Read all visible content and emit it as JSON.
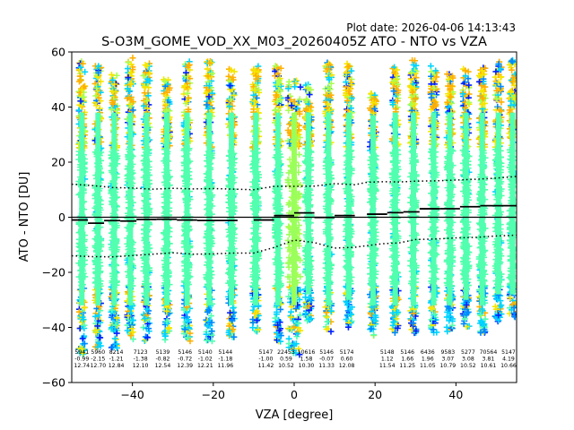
{
  "chart_data": {
    "type": "scatter",
    "plot_date_label": "Plot date: 2026-04-06 14:13:43",
    "title": "S-O3M_GOME_VOD_XX_M03_20260405Z ATO - NTO vs VZA",
    "xlabel": "VZA [degree]",
    "ylabel": "ATO - NTO [DU]",
    "xlim": [
      -55,
      55
    ],
    "ylim": [
      -60,
      60
    ],
    "xticks": [
      -40,
      -20,
      0,
      20,
      40
    ],
    "yticks": [
      -60,
      -40,
      -20,
      0,
      20,
      40,
      60
    ],
    "xtick_labels": [
      "−40",
      "−20",
      "0",
      "20",
      "40"
    ],
    "ytick_labels": [
      "−60",
      "−40",
      "−20",
      "0",
      "20",
      "40",
      "60"
    ],
    "marker": "+",
    "columns": [
      {
        "x": -52.5,
        "low": -50,
        "high": 57
      },
      {
        "x": -48.5,
        "low": -48,
        "high": 55
      },
      {
        "x": -44.5,
        "low": -48,
        "high": 52
      },
      {
        "x": -40.5,
        "low": -45,
        "high": 58
      },
      {
        "x": -36.5,
        "low": -45,
        "high": 57
      },
      {
        "x": -31.5,
        "low": -45,
        "high": 50
      },
      {
        "x": -26.5,
        "low": -45,
        "high": 57
      },
      {
        "x": -21,
        "low": -45,
        "high": 57
      },
      {
        "x": -15.5,
        "low": -45,
        "high": 55
      },
      {
        "x": -9.5,
        "low": -42,
        "high": 55
      },
      {
        "x": -4,
        "low": -46,
        "high": 55
      },
      {
        "x": 0,
        "low": -50,
        "high": 50
      },
      {
        "x": 3.5,
        "low": -38,
        "high": 49
      },
      {
        "x": 8.5,
        "low": -42,
        "high": 57
      },
      {
        "x": 13.5,
        "low": -40,
        "high": 56
      },
      {
        "x": 19.5,
        "low": -45,
        "high": 45
      },
      {
        "x": 25,
        "low": -42,
        "high": 55
      },
      {
        "x": 29.5,
        "low": -42,
        "high": 57
      },
      {
        "x": 34.5,
        "low": -42,
        "high": 55
      },
      {
        "x": 38.5,
        "low": -42,
        "high": 52
      },
      {
        "x": 42.5,
        "low": -40,
        "high": 54
      },
      {
        "x": 46.5,
        "low": -42,
        "high": 55
      },
      {
        "x": 50.5,
        "low": -38,
        "high": 58
      },
      {
        "x": 54,
        "low": -38,
        "high": 57
      }
    ],
    "mean_segments": [
      {
        "x0": -55,
        "x1": -51,
        "y": -0.99
      },
      {
        "x0": -51,
        "x1": -47,
        "y": -2.15
      },
      {
        "x0": -47,
        "x1": -43,
        "y": -1.21
      },
      {
        "x0": -43,
        "x1": -39,
        "y": -1.38
      },
      {
        "x0": -39,
        "x1": -34,
        "y": -0.82
      },
      {
        "x0": -34,
        "x1": -29,
        "y": -0.72
      },
      {
        "x0": -29,
        "x1": -24,
        "y": -1.02
      },
      {
        "x0": -24,
        "x1": -14,
        "y": -1.18
      },
      {
        "x0": -10,
        "x1": -5,
        "y": -1.0
      },
      {
        "x0": -5,
        "x1": 0,
        "y": 0.59
      },
      {
        "x0": 0,
        "x1": 5,
        "y": 1.58
      },
      {
        "x0": 5,
        "x1": 10,
        "y": -0.07
      },
      {
        "x0": 10,
        "x1": 15,
        "y": 0.6
      },
      {
        "x0": 18,
        "x1": 23,
        "y": 1.12
      },
      {
        "x0": 23,
        "x1": 27,
        "y": 1.66
      },
      {
        "x0": 27,
        "x1": 31,
        "y": 1.96
      },
      {
        "x0": 31,
        "x1": 36,
        "y": 3.07
      },
      {
        "x0": 36,
        "x1": 41,
        "y": 3.08
      },
      {
        "x0": 41,
        "x1": 46,
        "y": 3.81
      },
      {
        "x0": 46,
        "x1": 55,
        "y": 4.19
      }
    ],
    "upper_band": [
      [
        -55,
        12
      ],
      [
        -50,
        11.5
      ],
      [
        -45,
        10.8
      ],
      [
        -40,
        10.6
      ],
      [
        -35,
        10.2
      ],
      [
        -30,
        10.5
      ],
      [
        -25,
        10.3
      ],
      [
        -20,
        10.4
      ],
      [
        -15,
        10.2
      ],
      [
        -10,
        10.0
      ],
      [
        -5,
        11.2
      ],
      [
        0,
        11.2
      ],
      [
        5,
        11.3
      ],
      [
        10,
        12.2
      ],
      [
        15,
        11.8
      ],
      [
        18,
        12.7
      ],
      [
        22,
        12.9
      ],
      [
        26,
        12.8
      ],
      [
        30,
        13.1
      ],
      [
        35,
        13.2
      ],
      [
        40,
        13.5
      ],
      [
        45,
        13.8
      ],
      [
        50,
        14.2
      ],
      [
        55,
        14.8
      ]
    ],
    "lower_band": [
      [
        -55,
        -14
      ],
      [
        -50,
        -14.3
      ],
      [
        -45,
        -14.4
      ],
      [
        -40,
        -13.9
      ],
      [
        -35,
        -13.4
      ],
      [
        -30,
        -12.9
      ],
      [
        -25,
        -13.4
      ],
      [
        -20,
        -13.3
      ],
      [
        -15,
        -13.0
      ],
      [
        -10,
        -13.0
      ],
      [
        -5,
        -11.0
      ],
      [
        0,
        -8.3
      ],
      [
        5,
        -9.2
      ],
      [
        10,
        -11.2
      ],
      [
        15,
        -10.9
      ],
      [
        18,
        -10.3
      ],
      [
        22,
        -9.6
      ],
      [
        26,
        -9.3
      ],
      [
        30,
        -8.1
      ],
      [
        35,
        -7.9
      ],
      [
        40,
        -7.5
      ],
      [
        45,
        -7.3
      ],
      [
        50,
        -6.8
      ],
      [
        55,
        -6.5
      ]
    ],
    "stats_annotations": [
      {
        "x": -52.5,
        "lines": [
          "5941",
          "-0.99",
          "12.74"
        ]
      },
      {
        "x": -48.5,
        "lines": [
          "5960",
          "-2.15",
          "12.70"
        ]
      },
      {
        "x": -44,
        "lines": [
          "8214",
          "-1.21",
          "12.84"
        ]
      },
      {
        "x": -38,
        "lines": [
          "7123",
          "-1.38",
          "12.10"
        ]
      },
      {
        "x": -32.5,
        "lines": [
          "5139",
          "-0.82",
          "12.54"
        ]
      },
      {
        "x": -27,
        "lines": [
          "5146",
          "-0.72",
          "12.39"
        ]
      },
      {
        "x": -22,
        "lines": [
          "5140",
          "-1.02",
          "12.21"
        ]
      },
      {
        "x": -17,
        "lines": [
          "5144",
          "-1.18",
          "11.96"
        ]
      },
      {
        "x": -7,
        "lines": [
          "5147",
          "-1.00",
          "11.42"
        ]
      },
      {
        "x": -2,
        "lines": [
          "22453",
          "0.59",
          "10.52"
        ]
      },
      {
        "x": 3,
        "lines": [
          "10616",
          "1.58",
          "10.30"
        ]
      },
      {
        "x": 8,
        "lines": [
          "5146",
          "-0.07",
          "11.33"
        ]
      },
      {
        "x": 13,
        "lines": [
          "5174",
          "0.60",
          "12.08"
        ]
      },
      {
        "x": 23,
        "lines": [
          "5148",
          "1.12",
          "11.54"
        ]
      },
      {
        "x": 28,
        "lines": [
          "5146",
          "1.66",
          "11.25"
        ]
      },
      {
        "x": 33,
        "lines": [
          "6436",
          "1.96",
          "11.05"
        ]
      },
      {
        "x": 38,
        "lines": [
          "9583",
          "3.07",
          "10.79"
        ]
      },
      {
        "x": 43,
        "lines": [
          "5277",
          "3.08",
          "10.52"
        ]
      },
      {
        "x": 48,
        "lines": [
          "70564",
          "3.81",
          "10.61"
        ]
      },
      {
        "x": 53,
        "lines": [
          "5147",
          "4.19",
          "10.66"
        ]
      }
    ],
    "colors": {
      "body": "#52ffb0",
      "body_alt": "#4dffa6",
      "center": "#9aff5a",
      "cyan": "#00d4ff",
      "yellow": "#f5e600",
      "orange": "#ffb000",
      "lime": "#a8ff50",
      "blue": "#0020ff",
      "mid_blue": "#0088ff"
    }
  }
}
